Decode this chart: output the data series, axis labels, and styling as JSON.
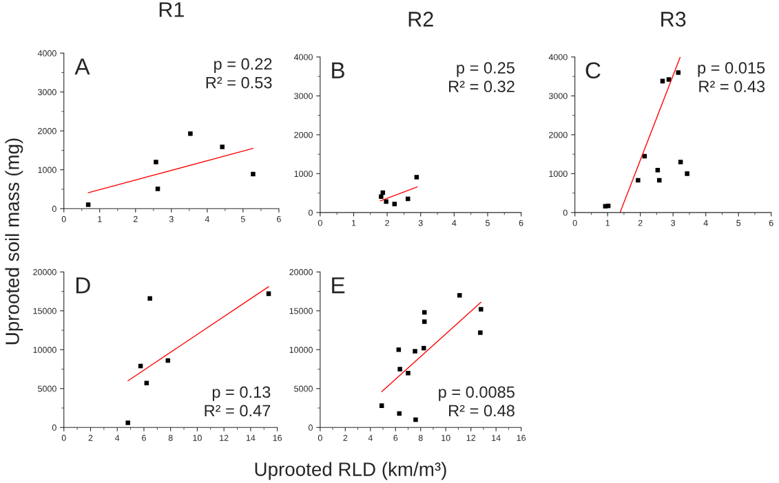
{
  "chart_data": [
    {
      "type": "scatter",
      "title": "R1",
      "xlim": [
        0,
        6
      ],
      "ylim": [
        0,
        4000
      ],
      "xticks": [
        0,
        1,
        2,
        3,
        4,
        5,
        6
      ],
      "yticks": [
        0,
        1000,
        2000,
        3000,
        4000
      ],
      "grid": false,
      "annotations": [
        "A",
        "p = 0.22",
        "R² = 0.53"
      ],
      "series": [
        {
          "type": "scatter",
          "color": "#000000",
          "marker": "square",
          "x": [
            0.68,
            2.57,
            2.62,
            3.53,
            4.42,
            5.28
          ],
          "values": [
            100,
            1200,
            510,
            1930,
            1590,
            890
          ]
        },
        {
          "type": "line",
          "color": "#ff0000",
          "x": [
            0.68,
            5.28
          ],
          "values": [
            410,
            1550
          ]
        }
      ]
    },
    {
      "type": "scatter",
      "title": "R2",
      "xlim": [
        0,
        6
      ],
      "ylim": [
        0,
        4000
      ],
      "xticks": [
        0,
        1,
        2,
        3,
        4,
        5,
        6
      ],
      "yticks": [
        0,
        1000,
        2000,
        3000,
        4000
      ],
      "grid": false,
      "annotations": [
        "B",
        "p = 0.25",
        "R² = 0.32"
      ],
      "series": [
        {
          "type": "scatter",
          "color": "#000000",
          "marker": "square",
          "x": [
            1.82,
            1.87,
            1.97,
            2.22,
            2.62,
            2.88
          ],
          "values": [
            410,
            510,
            280,
            220,
            350,
            910
          ]
        },
        {
          "type": "line",
          "color": "#ff0000",
          "x": [
            1.8,
            2.9
          ],
          "values": [
            300,
            660
          ]
        }
      ]
    },
    {
      "type": "scatter",
      "title": "R3",
      "xlim": [
        0,
        6
      ],
      "ylim": [
        0,
        4000
      ],
      "xticks": [
        0,
        1,
        2,
        3,
        4,
        5,
        6
      ],
      "yticks": [
        0,
        1000,
        2000,
        3000,
        4000
      ],
      "grid": false,
      "annotations": [
        "C",
        "p = 0.015",
        "R² = 0.43"
      ],
      "series": [
        {
          "type": "scatter",
          "color": "#000000",
          "marker": "square",
          "x": [
            0.93,
            1.02,
            1.93,
            2.13,
            2.53,
            2.58,
            2.68,
            2.87,
            3.16,
            3.23,
            3.43
          ],
          "values": [
            160,
            170,
            830,
            1450,
            1090,
            830,
            3380,
            3420,
            3600,
            1300,
            1000
          ]
        },
        {
          "type": "line",
          "color": "#ff0000",
          "x": [
            1.38,
            3.22
          ],
          "values": [
            0,
            4000
          ]
        }
      ]
    },
    {
      "type": "scatter",
      "xlim": [
        0,
        16
      ],
      "ylim": [
        0,
        20000
      ],
      "xticks": [
        0,
        2,
        4,
        6,
        8,
        10,
        12,
        14,
        16
      ],
      "yticks": [
        0,
        5000,
        10000,
        15000,
        20000
      ],
      "grid": false,
      "annotations": [
        "D",
        "p = 0.13",
        "R² = 0.47"
      ],
      "series": [
        {
          "type": "scatter",
          "color": "#000000",
          "marker": "square",
          "x": [
            4.8,
            5.75,
            6.2,
            6.45,
            7.8,
            15.35
          ],
          "values": [
            600,
            7900,
            5700,
            16600,
            8600,
            17200
          ]
        },
        {
          "type": "line",
          "color": "#ff0000",
          "x": [
            4.8,
            15.35
          ],
          "values": [
            6000,
            18100
          ]
        }
      ]
    },
    {
      "type": "scatter",
      "xlim": [
        0,
        16
      ],
      "ylim": [
        0,
        20000
      ],
      "xticks": [
        0,
        2,
        4,
        6,
        8,
        10,
        12,
        14,
        16
      ],
      "yticks": [
        0,
        5000,
        10000,
        15000,
        20000
      ],
      "grid": false,
      "annotations": [
        "E",
        "p = 0.0085",
        "R² = 0.48"
      ],
      "series": [
        {
          "type": "scatter",
          "color": "#000000",
          "marker": "square",
          "x": [
            4.9,
            6.25,
            6.3,
            6.35,
            7.0,
            7.55,
            7.6,
            8.3,
            8.3,
            8.25,
            11.1,
            12.8,
            12.75
          ],
          "values": [
            2800,
            10000,
            1800,
            7500,
            7000,
            9800,
            1000,
            14800,
            13600,
            10200,
            17000,
            15200,
            12200
          ]
        },
        {
          "type": "line",
          "color": "#ff0000",
          "x": [
            4.9,
            12.8
          ],
          "values": [
            4600,
            16100
          ]
        }
      ]
    },
    {
      "type": "other",
      "xlabel": "Uprooted RLD (km/m³)",
      "ylabel": "Uprooted soil mass (mg)"
    }
  ]
}
